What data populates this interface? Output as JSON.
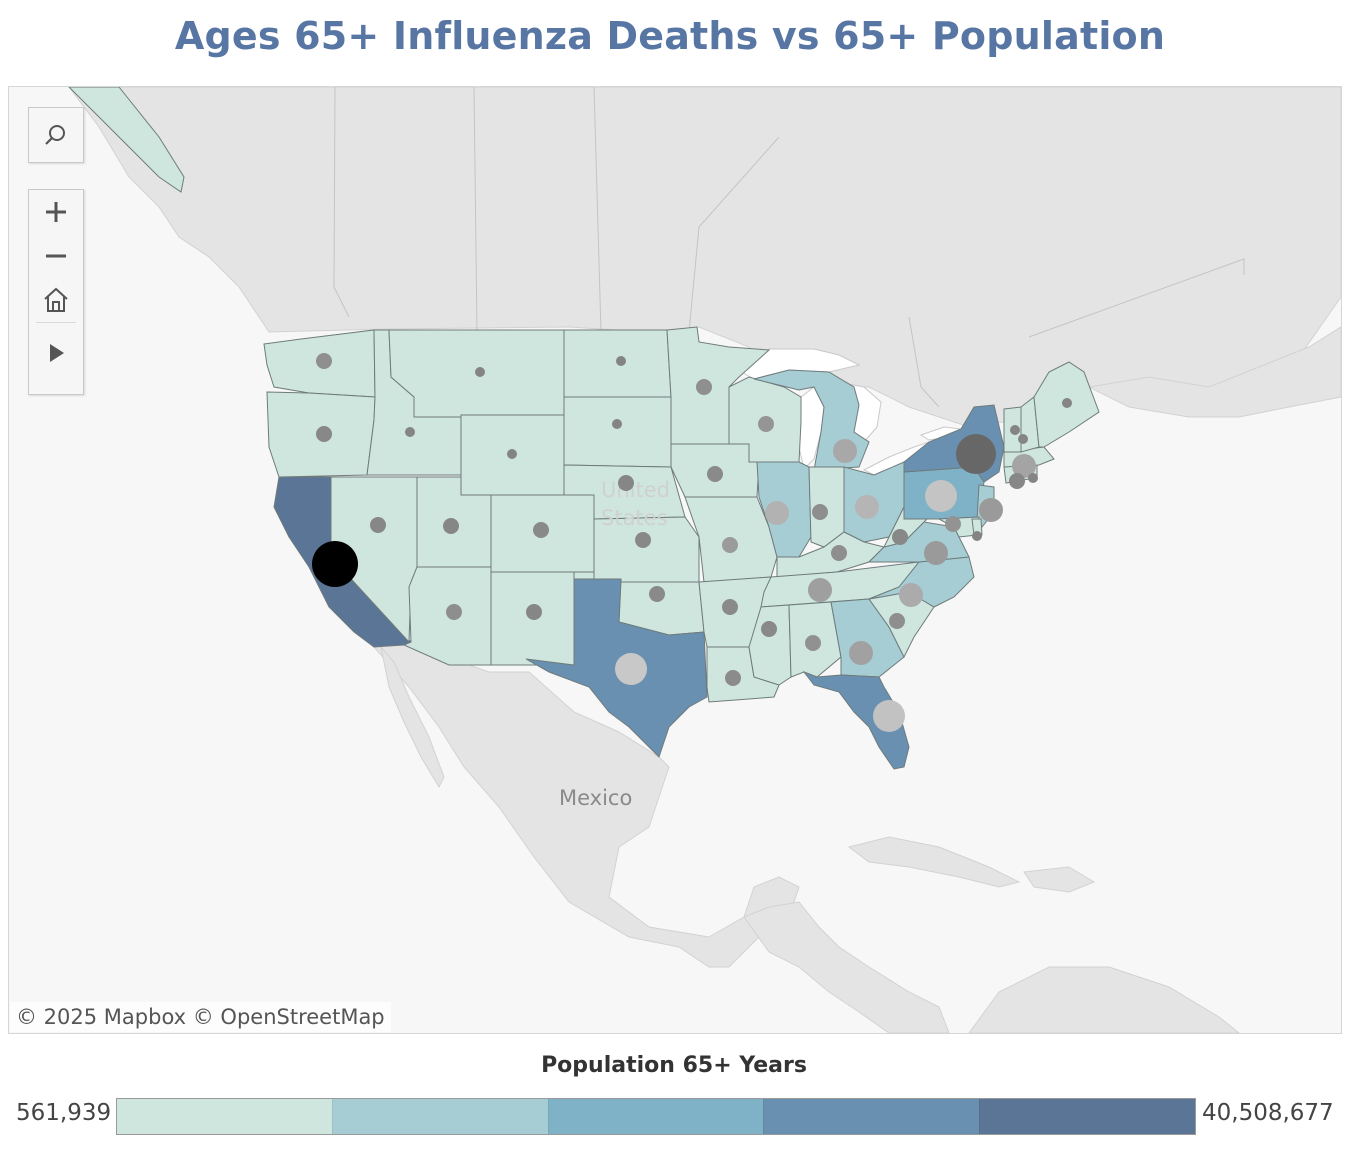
{
  "title": "Ages 65+ Influenza Deaths vs 65+ Population",
  "map": {
    "labels": {
      "country_us": "United States",
      "country_us_line1": "United",
      "country_us_line2": "States",
      "country_mx": "Mexico"
    },
    "attribution": "© 2025 Mapbox  © OpenStreetMap",
    "colors": {
      "bin1": "#cfe6df",
      "bin2": "#a6cdd3",
      "bin3": "#7fb2c6",
      "bin4": "#6990b0",
      "bin5": "#5b7597",
      "land": "#e3e3e3",
      "water": "#ffffff",
      "border": "#6f7b7b"
    },
    "states": [
      {
        "id": "WA",
        "name": "Washington",
        "bin": 1
      },
      {
        "id": "OR",
        "name": "Oregon",
        "bin": 1
      },
      {
        "id": "CA",
        "name": "California",
        "bin": 5
      },
      {
        "id": "NV",
        "name": "Nevada",
        "bin": 1
      },
      {
        "id": "ID",
        "name": "Idaho",
        "bin": 1
      },
      {
        "id": "MT",
        "name": "Montana",
        "bin": 1
      },
      {
        "id": "WY",
        "name": "Wyoming",
        "bin": 1
      },
      {
        "id": "UT",
        "name": "Utah",
        "bin": 1
      },
      {
        "id": "AZ",
        "name": "Arizona",
        "bin": 1
      },
      {
        "id": "CO",
        "name": "Colorado",
        "bin": 1
      },
      {
        "id": "NM",
        "name": "New Mexico",
        "bin": 1
      },
      {
        "id": "ND",
        "name": "North Dakota",
        "bin": 1
      },
      {
        "id": "SD",
        "name": "South Dakota",
        "bin": 1
      },
      {
        "id": "NE",
        "name": "Nebraska",
        "bin": 1
      },
      {
        "id": "KS",
        "name": "Kansas",
        "bin": 1
      },
      {
        "id": "OK",
        "name": "Oklahoma",
        "bin": 1
      },
      {
        "id": "TX",
        "name": "Texas",
        "bin": 4
      },
      {
        "id": "MN",
        "name": "Minnesota",
        "bin": 1
      },
      {
        "id": "IA",
        "name": "Iowa",
        "bin": 1
      },
      {
        "id": "MO",
        "name": "Missouri",
        "bin": 1
      },
      {
        "id": "AR",
        "name": "Arkansas",
        "bin": 1
      },
      {
        "id": "LA",
        "name": "Louisiana",
        "bin": 1
      },
      {
        "id": "WI",
        "name": "Wisconsin",
        "bin": 1
      },
      {
        "id": "IL",
        "name": "Illinois",
        "bin": 2
      },
      {
        "id": "MI",
        "name": "Michigan",
        "bin": 2
      },
      {
        "id": "IN",
        "name": "Indiana",
        "bin": 1
      },
      {
        "id": "OH",
        "name": "Ohio",
        "bin": 2
      },
      {
        "id": "KY",
        "name": "Kentucky",
        "bin": 1
      },
      {
        "id": "TN",
        "name": "Tennessee",
        "bin": 1
      },
      {
        "id": "MS",
        "name": "Mississippi",
        "bin": 1
      },
      {
        "id": "AL",
        "name": "Alabama",
        "bin": 1
      },
      {
        "id": "GA",
        "name": "Georgia",
        "bin": 2
      },
      {
        "id": "FL",
        "name": "Florida",
        "bin": 4
      },
      {
        "id": "SC",
        "name": "South Carolina",
        "bin": 1
      },
      {
        "id": "NC",
        "name": "North Carolina",
        "bin": 2
      },
      {
        "id": "VA",
        "name": "Virginia",
        "bin": 2
      },
      {
        "id": "WV",
        "name": "West Virginia",
        "bin": 1
      },
      {
        "id": "PA",
        "name": "Pennsylvania",
        "bin": 3
      },
      {
        "id": "NY",
        "name": "New York",
        "bin": 4
      },
      {
        "id": "NJ",
        "name": "New Jersey",
        "bin": 2
      },
      {
        "id": "MD",
        "name": "Maryland",
        "bin": 1
      },
      {
        "id": "DE",
        "name": "Delaware",
        "bin": 1
      },
      {
        "id": "CT",
        "name": "Connecticut",
        "bin": 1
      },
      {
        "id": "RI",
        "name": "Rhode Island",
        "bin": 1
      },
      {
        "id": "MA",
        "name": "Massachusetts",
        "bin": 1
      },
      {
        "id": "VT",
        "name": "Vermont",
        "bin": 1
      },
      {
        "id": "NH",
        "name": "New Hampshire",
        "bin": 1
      },
      {
        "id": "ME",
        "name": "Maine",
        "bin": 1
      }
    ],
    "death_markers": [
      {
        "state": "CA",
        "level": "highest",
        "color": "#000000"
      },
      {
        "state": "NY",
        "level": "very high",
        "color": "#676767"
      },
      {
        "state": "TX",
        "level": "high",
        "color": "#c8c8c8"
      },
      {
        "state": "FL",
        "level": "high",
        "color": "#c2c2c2"
      },
      {
        "state": "PA",
        "level": "high",
        "color": "#c4c4c4"
      },
      {
        "state": "IL",
        "level": "medium",
        "color": "#b2b2b2"
      },
      {
        "state": "OH",
        "level": "medium",
        "color": "#b5b5b5"
      },
      {
        "state": "MI",
        "level": "medium",
        "color": "#a8a8a8"
      },
      {
        "state": "MA",
        "level": "medium",
        "color": "#a4a4a4"
      },
      {
        "state": "NC",
        "level": "medium",
        "color": "#ababab"
      },
      {
        "state": "NJ",
        "level": "medium",
        "color": "#9a9a9a"
      },
      {
        "state": "TN",
        "level": "medium",
        "color": "#9f9f9f"
      },
      {
        "state": "GA",
        "level": "medium",
        "color": "#a1a1a1"
      },
      {
        "state": "VA",
        "level": "medium",
        "color": "#9a9a9a"
      },
      {
        "state": "MO",
        "level": "low",
        "color": "#9b9b9b"
      },
      {
        "state": "WI",
        "level": "low",
        "color": "#959595"
      },
      {
        "state": "MD",
        "level": "low",
        "color": "#939393"
      },
      {
        "state": "AL",
        "level": "low",
        "color": "#919191"
      },
      {
        "state": "IN",
        "level": "low",
        "color": "#8e8e8e"
      },
      {
        "state": "KY",
        "level": "low",
        "color": "#8e8e8e"
      },
      {
        "state": "WA",
        "level": "low",
        "color": "#8f8f8f"
      },
      {
        "state": "MN",
        "level": "low",
        "color": "#8f8f8f"
      },
      {
        "state": "AZ",
        "level": "low",
        "color": "#8e8e8e"
      },
      {
        "state": "SC",
        "level": "low",
        "color": "#8e8e8e"
      },
      {
        "state": "LA",
        "level": "low",
        "color": "#8b8b8b"
      },
      {
        "state": "OK",
        "level": "low",
        "color": "#8a8a8a"
      },
      {
        "state": "IA",
        "level": "low",
        "color": "#8a8a8a"
      },
      {
        "state": "AR",
        "level": "low",
        "color": "#8a8a8a"
      },
      {
        "state": "MS",
        "level": "low",
        "color": "#898989"
      },
      {
        "state": "CO",
        "level": "low",
        "color": "#898989"
      },
      {
        "state": "KS",
        "level": "low",
        "color": "#888888"
      },
      {
        "state": "OR",
        "level": "low",
        "color": "#888888"
      },
      {
        "state": "WV",
        "level": "low",
        "color": "#888888"
      },
      {
        "state": "CT",
        "level": "low",
        "color": "#878787"
      },
      {
        "state": "NV",
        "level": "low",
        "color": "#878787"
      },
      {
        "state": "UT",
        "level": "low",
        "color": "#868686"
      },
      {
        "state": "NE",
        "level": "low",
        "color": "#868686"
      },
      {
        "state": "NM",
        "level": "low",
        "color": "#868686"
      },
      {
        "state": "ME",
        "level": "very low",
        "color": "#858585"
      },
      {
        "state": "NH",
        "level": "very low",
        "color": "#858585"
      },
      {
        "state": "ID",
        "level": "very low",
        "color": "#858585"
      },
      {
        "state": "RI",
        "level": "very low",
        "color": "#858585"
      },
      {
        "state": "MT",
        "level": "very low",
        "color": "#848484"
      },
      {
        "state": "DE",
        "level": "very low",
        "color": "#848484"
      },
      {
        "state": "SD",
        "level": "very low",
        "color": "#848484"
      },
      {
        "state": "ND",
        "level": "very low",
        "color": "#848484"
      },
      {
        "state": "VT",
        "level": "very low",
        "color": "#848484"
      },
      {
        "state": "WY",
        "level": "very low",
        "color": "#848484"
      }
    ]
  },
  "toolbar": {
    "search_icon": "search-icon",
    "zoom_in_icon": "plus-icon",
    "zoom_out_icon": "minus-icon",
    "home_icon": "home-icon",
    "expand_icon": "play-arrow-icon"
  },
  "legend": {
    "title": "Population 65+ Years",
    "min_label": "561,939",
    "max_label": "40,508,677",
    "colors": [
      "#cfe6df",
      "#a6cdd3",
      "#7fb2c6",
      "#6990b0",
      "#5b7597"
    ]
  }
}
